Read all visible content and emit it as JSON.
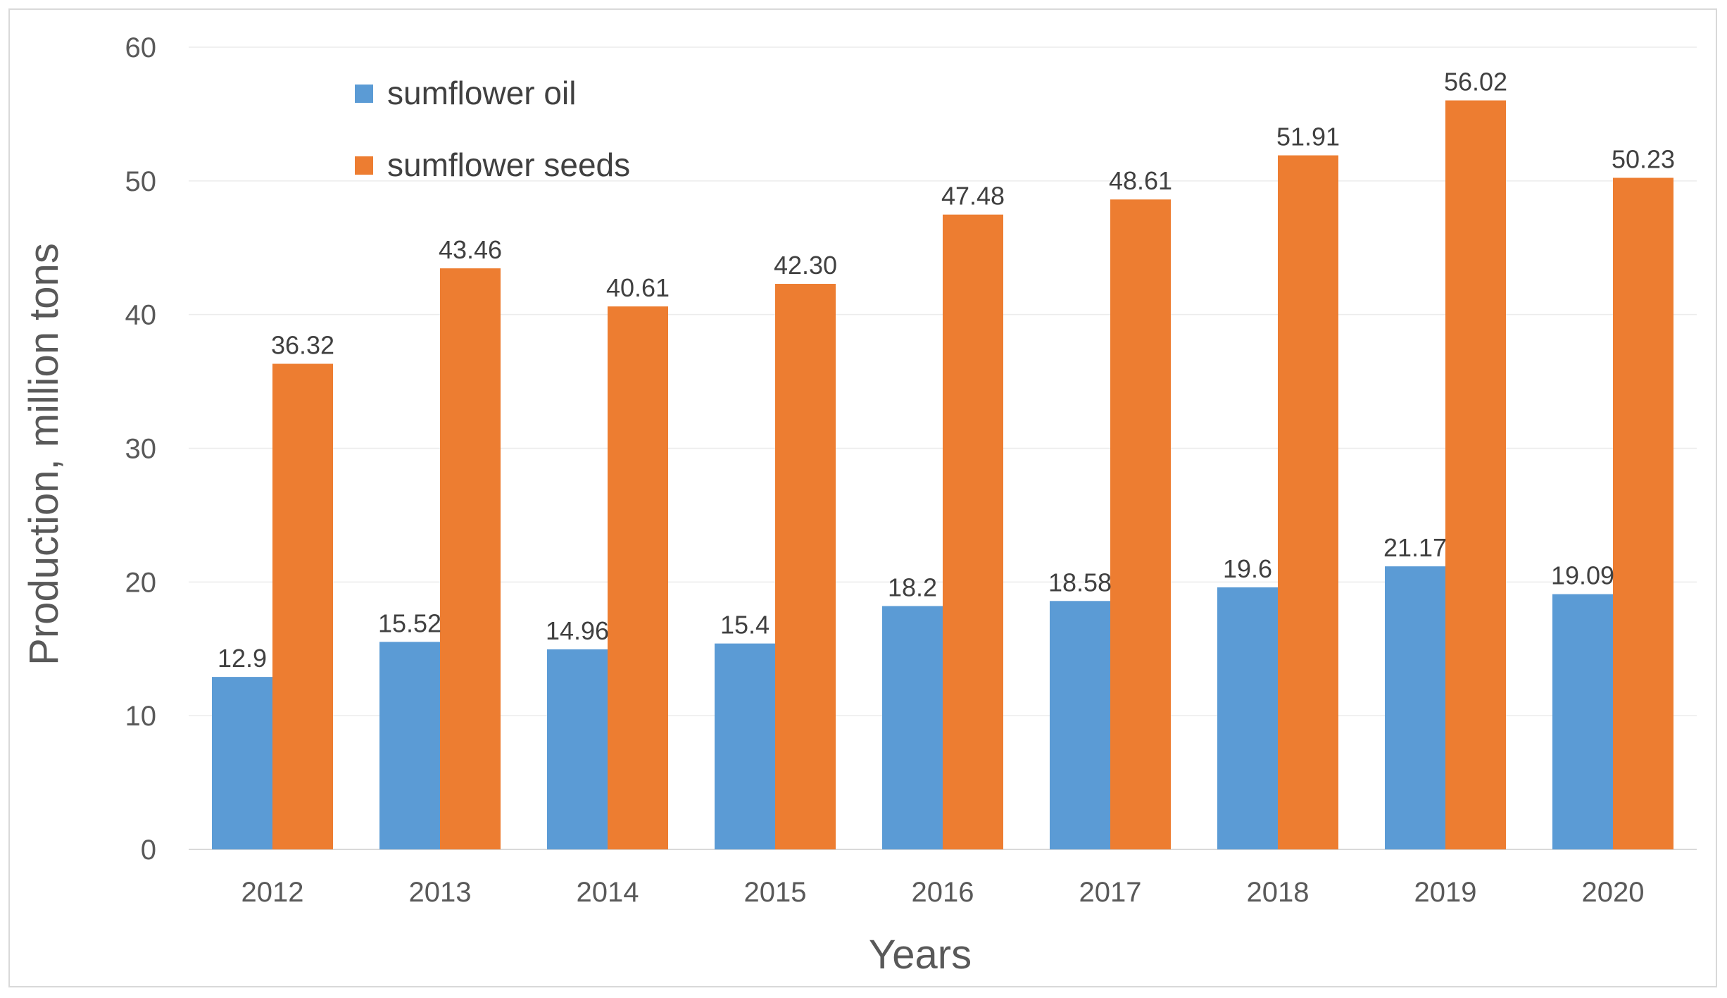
{
  "chart_data": {
    "type": "bar",
    "title": "",
    "xlabel": "Years",
    "ylabel": "Production,  million tons",
    "ylim": [
      0,
      60
    ],
    "yticks": [
      0,
      10,
      20,
      30,
      40,
      50,
      60
    ],
    "grid": true,
    "legend_position": "top-left",
    "categories": [
      "2012",
      "2013",
      "2014",
      "2015",
      "2016",
      "2017",
      "2018",
      "2019",
      "2020"
    ],
    "series": [
      {
        "name": "sumflower oil",
        "color": "#5b9bd5",
        "values": [
          12.9,
          15.52,
          14.96,
          15.4,
          18.2,
          18.58,
          19.6,
          21.17,
          19.09
        ],
        "labels": [
          "12.9",
          "15.52",
          "14.96",
          "15.4",
          "18.2",
          "18.58",
          "19.6",
          "21.17",
          "19.09"
        ]
      },
      {
        "name": "sumflower seeds",
        "color": "#ed7d31",
        "values": [
          36.32,
          43.46,
          40.61,
          42.3,
          47.48,
          48.61,
          51.91,
          56.02,
          50.23
        ],
        "labels": [
          "36.32",
          "43.46",
          "40.61",
          "42.30",
          "47.48",
          "48.61",
          "51.91",
          "56.02",
          "50.23"
        ]
      }
    ]
  }
}
